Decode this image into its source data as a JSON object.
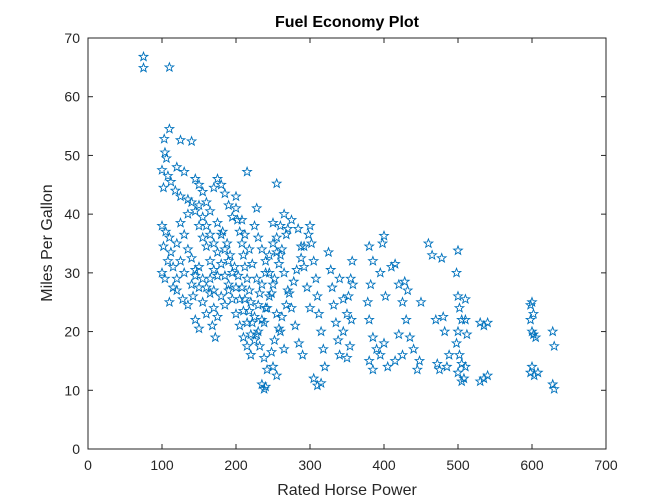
{
  "colors": {
    "marker": "#0072BD",
    "axis": "#262626",
    "background": "#ffffff"
  },
  "chart_data": {
    "type": "scatter",
    "title": "Fuel Economy Plot",
    "xlabel": "Rated Horse Power",
    "ylabel": "Miles Per Gallon",
    "xlim": [
      0,
      700
    ],
    "ylim": [
      0,
      70
    ],
    "xticks": [
      "0",
      "100",
      "200",
      "300",
      "400",
      "500",
      "600",
      "700"
    ],
    "yticks": [
      "0",
      "10",
      "20",
      "30",
      "40",
      "50",
      "60",
      "70"
    ],
    "grid": false,
    "marker": "pentagram",
    "series": [
      {
        "points": [
          [
            75,
            66.8
          ],
          [
            75,
            64.9
          ],
          [
            110,
            65.0
          ],
          [
            110,
            54.5
          ],
          [
            103,
            52.8
          ],
          [
            125,
            52.6
          ],
          [
            140,
            52.4
          ],
          [
            104,
            50.5
          ],
          [
            106,
            49.5
          ],
          [
            100,
            47.5
          ],
          [
            120,
            48.0
          ],
          [
            130,
            47.2
          ],
          [
            145,
            46.0
          ],
          [
            112,
            45.5
          ],
          [
            118,
            44.0
          ],
          [
            125,
            43.0
          ],
          [
            135,
            42.5
          ],
          [
            102,
            44.5
          ],
          [
            108,
            46.5
          ],
          [
            150,
            45.0
          ],
          [
            155,
            43.8
          ],
          [
            160,
            42.0
          ],
          [
            170,
            44.5
          ],
          [
            175,
            46.0
          ],
          [
            165,
            40.5
          ],
          [
            100,
            38.0
          ],
          [
            105,
            37.0
          ],
          [
            110,
            36.0
          ],
          [
            102,
            34.5
          ],
          [
            108,
            32.0
          ],
          [
            112,
            33.5
          ],
          [
            100,
            30.0
          ],
          [
            104,
            29.0
          ],
          [
            115,
            31.0
          ],
          [
            120,
            35.0
          ],
          [
            125,
            38.5
          ],
          [
            130,
            36.5
          ],
          [
            135,
            34.0
          ],
          [
            140,
            32.5
          ],
          [
            145,
            30.5
          ],
          [
            150,
            38.0
          ],
          [
            155,
            36.0
          ],
          [
            160,
            34.5
          ],
          [
            165,
            32.0
          ],
          [
            170,
            30.5
          ],
          [
            175,
            38.5
          ],
          [
            180,
            36.5
          ],
          [
            185,
            34.0
          ],
          [
            190,
            32.0
          ],
          [
            195,
            30.0
          ],
          [
            110,
            25.0
          ],
          [
            120,
            27.0
          ],
          [
            128,
            25.5
          ],
          [
            135,
            24.5
          ],
          [
            142,
            26.0
          ],
          [
            150,
            27.5
          ],
          [
            155,
            25.0
          ],
          [
            160,
            23.0
          ],
          [
            165,
            26.5
          ],
          [
            170,
            24.0
          ],
          [
            175,
            22.5
          ],
          [
            180,
            26.0
          ],
          [
            185,
            24.5
          ],
          [
            190,
            28.0
          ],
          [
            145,
            22.0
          ],
          [
            150,
            20.5
          ],
          [
            168,
            21.0
          ],
          [
            172,
            19.0
          ],
          [
            200,
            41.0
          ],
          [
            202,
            39.0
          ],
          [
            205,
            37.0
          ],
          [
            208,
            35.0
          ],
          [
            210,
            33.0
          ],
          [
            212,
            31.0
          ],
          [
            215,
            29.0
          ],
          [
            218,
            27.0
          ],
          [
            220,
            25.0
          ],
          [
            200,
            23.0
          ],
          [
            205,
            21.0
          ],
          [
            210,
            19.0
          ],
          [
            215,
            17.5
          ],
          [
            220,
            16.0
          ],
          [
            225,
            18.5
          ],
          [
            230,
            20.0
          ],
          [
            235,
            22.0
          ],
          [
            240,
            24.0
          ],
          [
            245,
            26.0
          ],
          [
            250,
            28.0
          ],
          [
            225,
            38.0
          ],
          [
            230,
            36.0
          ],
          [
            235,
            34.0
          ],
          [
            240,
            32.0
          ],
          [
            245,
            30.0
          ],
          [
            200,
            43.0
          ],
          [
            215,
            47.2
          ],
          [
            228,
            41.0
          ],
          [
            235,
            11.0
          ],
          [
            238,
            10.2
          ],
          [
            240,
            10.6
          ],
          [
            255,
            45.2
          ],
          [
            250,
            38.5
          ],
          [
            255,
            36.0
          ],
          [
            260,
            33.0
          ],
          [
            265,
            30.0
          ],
          [
            270,
            27.0
          ],
          [
            275,
            24.0
          ],
          [
            280,
            21.0
          ],
          [
            285,
            18.0
          ],
          [
            290,
            16.0
          ],
          [
            260,
            20.0
          ],
          [
            265,
            17.0
          ],
          [
            255,
            23.0
          ],
          [
            250,
            14.0
          ],
          [
            255,
            12.5
          ],
          [
            300,
            38.0
          ],
          [
            302,
            35.0
          ],
          [
            305,
            32.0
          ],
          [
            308,
            29.0
          ],
          [
            310,
            26.0
          ],
          [
            312,
            23.0
          ],
          [
            315,
            20.0
          ],
          [
            318,
            17.0
          ],
          [
            320,
            14.0
          ],
          [
            305,
            12.0
          ],
          [
            310,
            10.8
          ],
          [
            315,
            11.2
          ],
          [
            300,
            24.0
          ],
          [
            296,
            27.5
          ],
          [
            292,
            31.0
          ],
          [
            288,
            34.5
          ],
          [
            284,
            37.5
          ],
          [
            325,
            33.5
          ],
          [
            328,
            30.5
          ],
          [
            330,
            27.5
          ],
          [
            332,
            24.5
          ],
          [
            335,
            21.5
          ],
          [
            338,
            18.5
          ],
          [
            340,
            16.0
          ],
          [
            345,
            20.0
          ],
          [
            350,
            23.0
          ],
          [
            352,
            26.0
          ],
          [
            355,
            29.0
          ],
          [
            357,
            32.0
          ],
          [
            358,
            28.0
          ],
          [
            356,
            22.0
          ],
          [
            354,
            17.5
          ],
          [
            350,
            15.5
          ],
          [
            345,
            25.5
          ],
          [
            340,
            29.0
          ],
          [
            380,
            34.5
          ],
          [
            385,
            32.0
          ],
          [
            382,
            28.0
          ],
          [
            378,
            25.0
          ],
          [
            380,
            22.0
          ],
          [
            385,
            19.0
          ],
          [
            390,
            17.0
          ],
          [
            380,
            15.0
          ],
          [
            385,
            13.5
          ],
          [
            395,
            16.0
          ],
          [
            398,
            35.0
          ],
          [
            400,
            36.3
          ],
          [
            395,
            30.0
          ],
          [
            402,
            26.0
          ],
          [
            400,
            18.0
          ],
          [
            405,
            14.0
          ],
          [
            410,
            31.0
          ],
          [
            415,
            31.5
          ],
          [
            420,
            28.0
          ],
          [
            425,
            25.0
          ],
          [
            428,
            28.5
          ],
          [
            432,
            27.0
          ],
          [
            430,
            22.0
          ],
          [
            435,
            19.0
          ],
          [
            440,
            17.0
          ],
          [
            425,
            16.0
          ],
          [
            420,
            19.5
          ],
          [
            415,
            15.0
          ],
          [
            445,
            13.5
          ],
          [
            450,
            25.0
          ],
          [
            448,
            15.0
          ],
          [
            460,
            35.0
          ],
          [
            465,
            33.0
          ],
          [
            470,
            22.0
          ],
          [
            472,
            14.5
          ],
          [
            475,
            13.5
          ],
          [
            478,
            32.5
          ],
          [
            480,
            22.5
          ],
          [
            482,
            20.0
          ],
          [
            485,
            14.0
          ],
          [
            488,
            16.0
          ],
          [
            500,
            33.8
          ],
          [
            498,
            30.0
          ],
          [
            500,
            26.0
          ],
          [
            502,
            24.0
          ],
          [
            505,
            22.0
          ],
          [
            500,
            20.0
          ],
          [
            498,
            18.0
          ],
          [
            502,
            16.0
          ],
          [
            505,
            14.5
          ],
          [
            500,
            13.0
          ],
          [
            508,
            12.0
          ],
          [
            510,
            25.5
          ],
          [
            510,
            22.0
          ],
          [
            512,
            19.5
          ],
          [
            510,
            14.0
          ],
          [
            505,
            11.5
          ],
          [
            530,
            21.5
          ],
          [
            535,
            21.0
          ],
          [
            540,
            21.5
          ],
          [
            530,
            11.5
          ],
          [
            535,
            12.0
          ],
          [
            540,
            12.5
          ],
          [
            598,
            24.5
          ],
          [
            600,
            25.0
          ],
          [
            602,
            23.0
          ],
          [
            598,
            22.0
          ],
          [
            600,
            20.0
          ],
          [
            602,
            19.5
          ],
          [
            605,
            19.0
          ],
          [
            600,
            14.0
          ],
          [
            598,
            13.0
          ],
          [
            603,
            12.5
          ],
          [
            608,
            13.0
          ],
          [
            628,
            20.0
          ],
          [
            630,
            17.5
          ],
          [
            628,
            11.0
          ],
          [
            630,
            10.2
          ],
          [
            180,
            45.0
          ],
          [
            185,
            43.5
          ],
          [
            190,
            41.5
          ],
          [
            195,
            39.5
          ],
          [
            182,
            37.0
          ],
          [
            188,
            35.0
          ],
          [
            192,
            33.0
          ],
          [
            198,
            31.0
          ],
          [
            203,
            29.5
          ],
          [
            208,
            27.5
          ],
          [
            212,
            25.5
          ],
          [
            218,
            23.5
          ],
          [
            222,
            21.5
          ],
          [
            228,
            19.5
          ],
          [
            232,
            17.5
          ],
          [
            238,
            15.5
          ],
          [
            242,
            13.5
          ],
          [
            248,
            16.5
          ],
          [
            252,
            18.5
          ],
          [
            258,
            20.5
          ],
          [
            262,
            22.5
          ],
          [
            268,
            24.5
          ],
          [
            272,
            26.5
          ],
          [
            278,
            28.5
          ],
          [
            282,
            30.5
          ],
          [
            288,
            32.5
          ],
          [
            292,
            34.5
          ],
          [
            298,
            36.5
          ],
          [
            275,
            39.0
          ],
          [
            268,
            36.5
          ],
          [
            262,
            34.0
          ],
          [
            258,
            31.5
          ],
          [
            252,
            29.0
          ],
          [
            248,
            26.5
          ],
          [
            242,
            24.0
          ],
          [
            238,
            21.5
          ],
          [
            232,
            26.5
          ],
          [
            228,
            29.0
          ],
          [
            222,
            31.5
          ],
          [
            218,
            34.0
          ],
          [
            212,
            36.5
          ],
          [
            208,
            39.0
          ],
          [
            140,
            28.0
          ],
          [
            145,
            29.5
          ],
          [
            150,
            31.0
          ],
          [
            155,
            29.0
          ],
          [
            160,
            27.5
          ],
          [
            165,
            29.0
          ],
          [
            170,
            27.0
          ],
          [
            175,
            29.5
          ],
          [
            130,
            30.0
          ],
          [
            125,
            32.0
          ],
          [
            120,
            29.0
          ],
          [
            115,
            27.5
          ],
          [
            135,
            40.0
          ],
          [
            140,
            42.0
          ],
          [
            145,
            40.5
          ],
          [
            150,
            41.5
          ],
          [
            155,
            39.5
          ],
          [
            160,
            38.0
          ],
          [
            165,
            36.5
          ],
          [
            170,
            35.0
          ],
          [
            175,
            33.5
          ],
          [
            180,
            31.5
          ],
          [
            185,
            29.5
          ],
          [
            190,
            27.0
          ],
          [
            195,
            25.5
          ],
          [
            200,
            27.5
          ],
          [
            205,
            25.5
          ],
          [
            210,
            23.5
          ],
          [
            215,
            21.5
          ],
          [
            220,
            19.5
          ],
          [
            225,
            22.5
          ],
          [
            230,
            24.5
          ],
          [
            235,
            28.0
          ],
          [
            240,
            30.0
          ],
          [
            245,
            33.0
          ],
          [
            250,
            35.0
          ],
          [
            255,
            33.5
          ],
          [
            260,
            38.0
          ],
          [
            265,
            40.0
          ],
          [
            270,
            37.5
          ]
        ]
      }
    ]
  }
}
